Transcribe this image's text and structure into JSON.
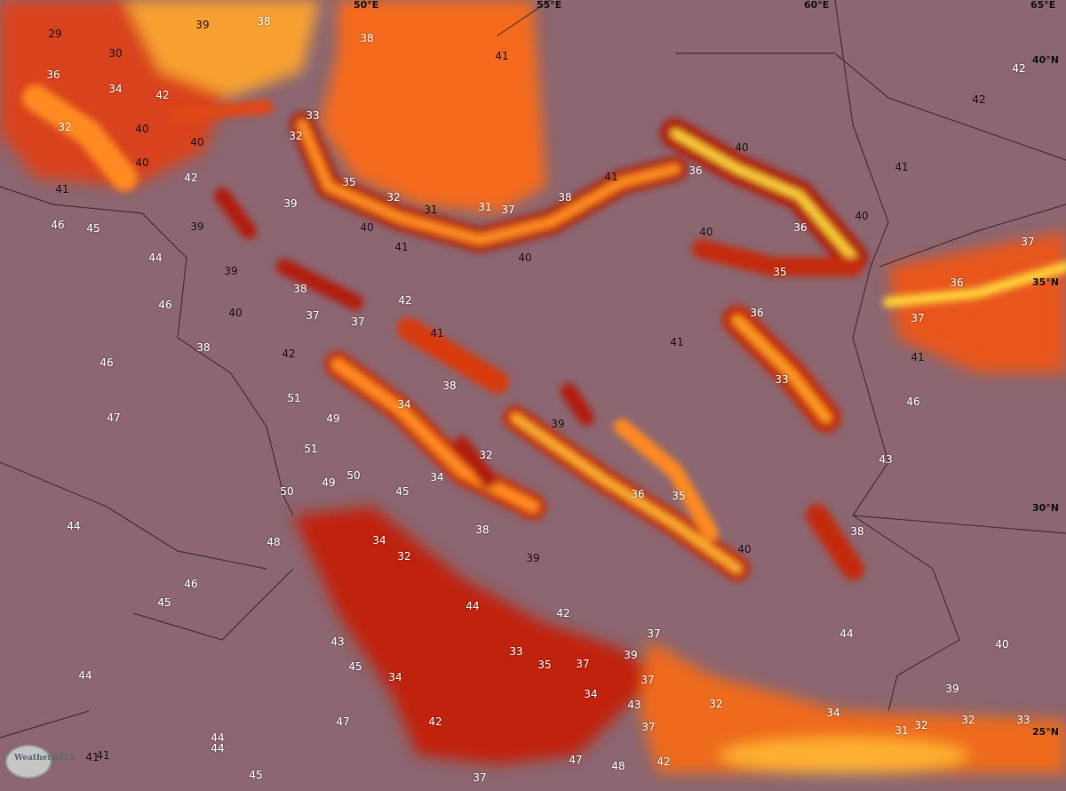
{
  "map": {
    "type": "temperature forecast map",
    "logo_text": "WeatherBELL",
    "coordinate_labels": [
      "50°E",
      "55°E",
      "60°E",
      "65°E",
      "40°N",
      "35°N",
      "30°N",
      "25°N"
    ],
    "temperature_labels": [
      "29",
      "30",
      "39",
      "38",
      "38",
      "36",
      "34",
      "42",
      "32",
      "40",
      "40",
      "40",
      "42",
      "33",
      "32",
      "41",
      "46",
      "45",
      "44",
      "39",
      "35",
      "39",
      "40",
      "32",
      "31",
      "31",
      "37",
      "38",
      "41",
      "40",
      "41",
      "42",
      "42",
      "41",
      "40",
      "36",
      "40",
      "36",
      "40",
      "35",
      "37",
      "36",
      "41",
      "39",
      "46",
      "40",
      "38",
      "37",
      "37",
      "42",
      "41",
      "42",
      "38",
      "36",
      "41",
      "37",
      "41",
      "33",
      "46",
      "43",
      "46",
      "47",
      "38",
      "34",
      "39",
      "32",
      "34",
      "51",
      "49",
      "51",
      "50",
      "50",
      "49",
      "45",
      "36",
      "35",
      "44",
      "48",
      "34",
      "32",
      "38",
      "39",
      "40",
      "38",
      "46",
      "45",
      "44",
      "42",
      "43",
      "45",
      "33",
      "35",
      "37",
      "39",
      "37",
      "44",
      "40",
      "44",
      "34",
      "37",
      "34",
      "43",
      "32",
      "39",
      "34",
      "32",
      "32",
      "33",
      "31",
      "37",
      "47",
      "42",
      "44",
      "44",
      "41",
      "41",
      "45",
      "47",
      "48",
      "42",
      "37"
    ],
    "colors": {
      "land_base": "#8c6670",
      "hot_desert": "#8a3a5e",
      "extreme_heat": "#2f6a48",
      "caspian": "#f56a1c",
      "persian_gulf": "#c0200f",
      "arabian_sea": "#ee6a1a",
      "cool_streak": "#ffd23a"
    }
  }
}
